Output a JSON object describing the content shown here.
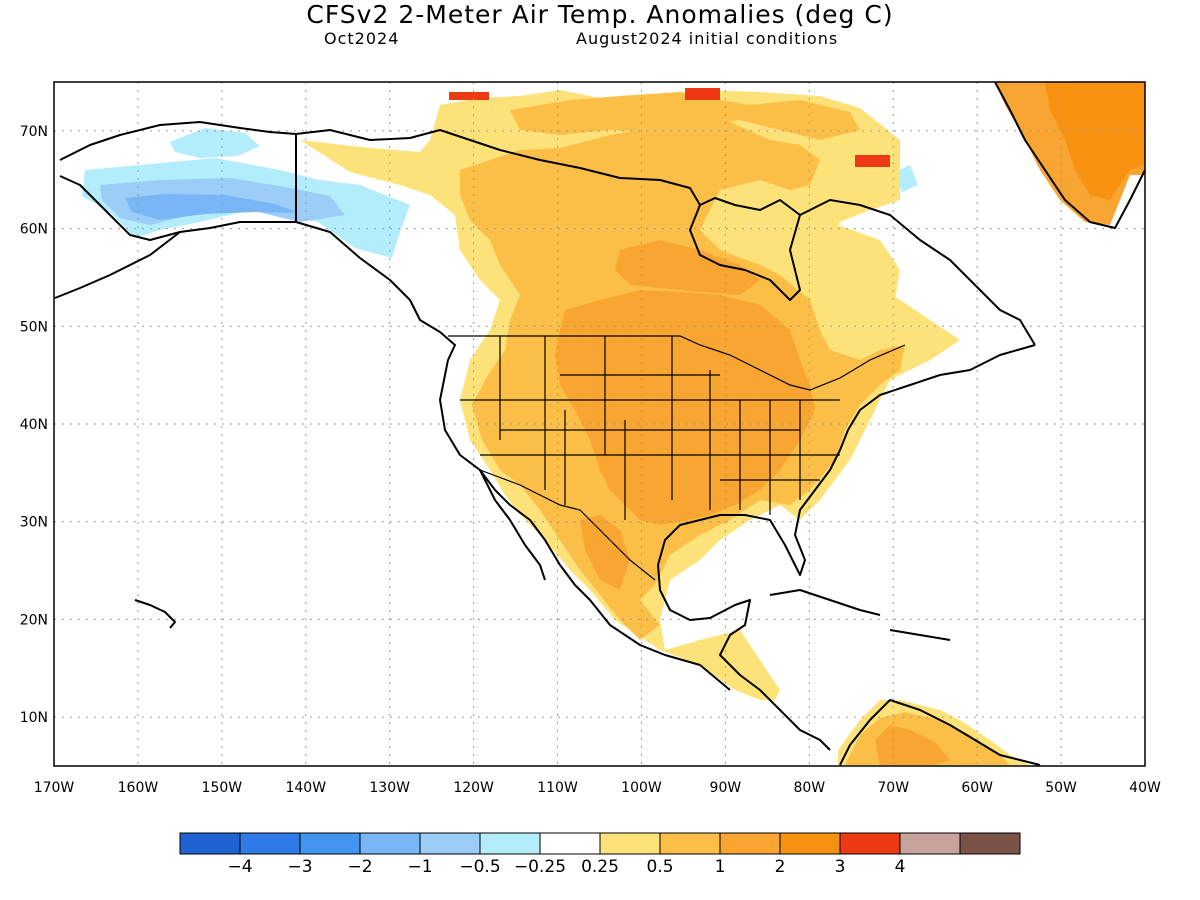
{
  "header": {
    "title": "CFSv2 2-Meter Air Temp. Anomalies (deg C)",
    "valid_month": "Oct2024",
    "initial_conditions": "August2024 initial conditions"
  },
  "map": {
    "lon_range": [
      -170,
      -40
    ],
    "lat_range": [
      5,
      75
    ],
    "lon_ticks": [
      "170W",
      "160W",
      "150W",
      "140W",
      "130W",
      "120W",
      "110W",
      "100W",
      "90W",
      "80W",
      "70W",
      "60W",
      "50W",
      "40W"
    ],
    "lat_ticks": [
      "10N",
      "20N",
      "30N",
      "40N",
      "50N",
      "60N",
      "70N"
    ],
    "grid": "dotted"
  },
  "colorbar": {
    "colors": [
      "#1f62d2",
      "#2f7ae6",
      "#4494f0",
      "#78b6f5",
      "#9ccdf6",
      "#b3ecfa",
      "#ffffff",
      "#fde27a",
      "#fbbf47",
      "#f9a531",
      "#f6920f",
      "#ee3a14",
      "#c8a39e",
      "#7a5346"
    ],
    "labels": [
      "−4",
      "−3",
      "−2",
      "−1",
      "−0.5",
      "−0.25",
      "0.25",
      "0.5",
      "1",
      "2",
      "3",
      "4"
    ]
  }
}
